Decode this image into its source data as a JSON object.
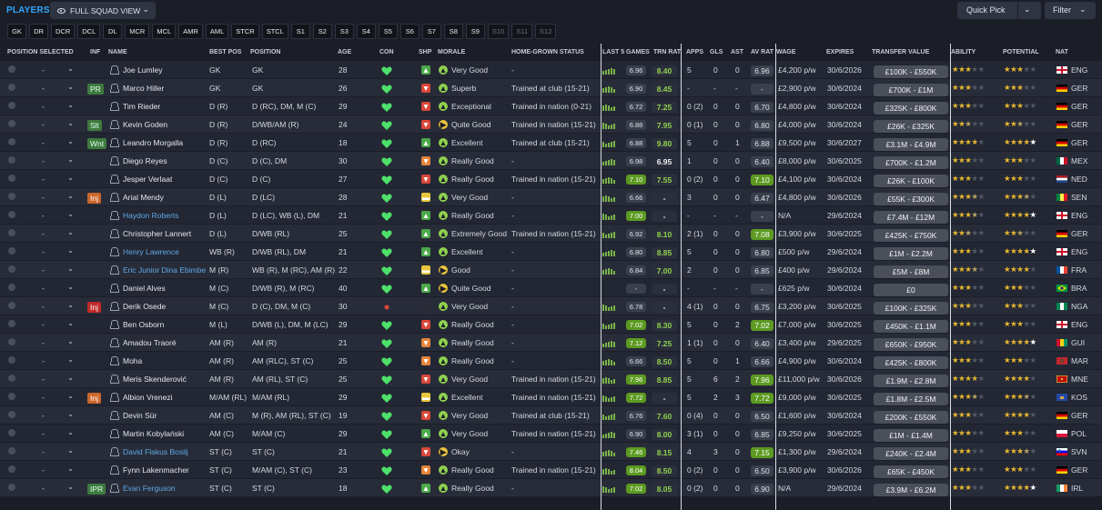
{
  "header": {
    "title": "PLAYERS",
    "view_label": "FULL SQUAD VIEW",
    "quick_pick": "Quick Pick",
    "filter": "Filter"
  },
  "chips": [
    "GK",
    "DR",
    "DCR",
    "DCL",
    "DL",
    "MCR",
    "MCL",
    "AMR",
    "AML",
    "STCR",
    "STCL",
    "S1",
    "S2",
    "S3",
    "S4",
    "S5",
    "S6",
    "S7",
    "S8",
    "S9",
    "S10",
    "S11",
    "S12"
  ],
  "dim_chips": [
    "S10",
    "S11",
    "S12"
  ],
  "columns": {
    "position_selected": "POSITION SELECTED",
    "inf": "INF",
    "name": "NAME",
    "best_pos": "BEST POS",
    "position": "POSITION",
    "age": "AGE",
    "con": "CON",
    "shp": "SHP",
    "morale": "MORALE",
    "home_grown": "HOME-GROWN STATUS",
    "last5": "LAST 5 GAMES",
    "trn": "TRN RAT",
    "apps": "APPS",
    "gls": "GLS",
    "ast": "AST",
    "avrat": "AV RAT",
    "wage": "WAGE",
    "expires": "EXPIRES",
    "tv": "TRANSFER VALUE",
    "ability": "ABILITY",
    "potential": "POTENTIAL",
    "nat": "NAT"
  },
  "players": [
    {
      "sel": "-",
      "inf": "",
      "name": "Joe Lumley",
      "link": false,
      "best": "GK",
      "pos": "GK",
      "age": "28",
      "shp": "g",
      "mor": "Very Good",
      "mc": "g",
      "hg": "-",
      "l5": "6.96",
      "l5hi": false,
      "trn": "8.40",
      "trnw": false,
      "apps": "5",
      "gls": "0",
      "ast": "0",
      "av": "6.96",
      "avhi": false,
      "wage": "£4,200 p/w",
      "exp": "30/6/2026",
      "tv": "£100K - £550K",
      "ab": 3,
      "abh": 0,
      "po": 3,
      "poh": 0,
      "pw": 0,
      "flag": "eng",
      "nat": "ENG"
    },
    {
      "sel": "-",
      "inf": "PR",
      "name": "Marco Hiller",
      "link": false,
      "best": "GK",
      "pos": "GK",
      "age": "26",
      "shp": "r",
      "mor": "Superb",
      "mc": "g",
      "hg": "Trained at club (15-21)",
      "l5": "6.90",
      "l5hi": false,
      "trn": "8.45",
      "trnw": false,
      "apps": "-",
      "gls": "-",
      "ast": "-",
      "av": "-",
      "avhi": false,
      "wage": "£2,900 p/w",
      "exp": "30/6/2024",
      "tv": "£700K - £1M",
      "ab": 3,
      "abh": 0,
      "po": 3,
      "poh": 0,
      "pw": 0,
      "flag": "ger",
      "nat": "GER"
    },
    {
      "sel": "-",
      "inf": "",
      "name": "Tim Rieder",
      "link": false,
      "best": "D (R)",
      "pos": "D (RC), DM, M (C)",
      "age": "29",
      "shp": "r",
      "mor": "Exceptional",
      "mc": "g",
      "hg": "Trained in nation (0-21)",
      "l5": "6.72",
      "l5hi": false,
      "trn": "7.25",
      "trnw": false,
      "apps": "0 (2)",
      "gls": "0",
      "ast": "0",
      "av": "6.70",
      "avhi": false,
      "wage": "£4,800 p/w",
      "exp": "30/6/2024",
      "tv": "£325K - £800K",
      "ab": 3,
      "abh": 0,
      "po": 3,
      "poh": 0,
      "pw": 0,
      "flag": "ger",
      "nat": "GER"
    },
    {
      "sel": "-",
      "inf": "Slt",
      "name": "Kevin Goden",
      "link": false,
      "best": "D (R)",
      "pos": "D/WB/AM (R)",
      "age": "24",
      "shp": "r",
      "mor": "Quite Good",
      "mc": "y",
      "hg": "Trained in nation (15-21)",
      "l5": "6.88",
      "l5hi": false,
      "trn": "7.95",
      "trnw": false,
      "apps": "0 (1)",
      "gls": "0",
      "ast": "0",
      "av": "6.80",
      "avhi": false,
      "wage": "£4,000 p/w",
      "exp": "30/6/2024",
      "tv": "£26K - £325K",
      "ab": 2,
      "abh": 1,
      "po": 2,
      "poh": 1,
      "pw": 0,
      "flag": "ger",
      "nat": "GER"
    },
    {
      "sel": "-",
      "inf": "Wnt",
      "name": "Leandro Morgalla",
      "link": false,
      "best": "D (R)",
      "pos": "D (RC)",
      "age": "18",
      "shp": "g",
      "mor": "Excellent",
      "mc": "g",
      "hg": "Trained at club (15-21)",
      "l5": "6.88",
      "l5hi": false,
      "trn": "9.80",
      "trnw": false,
      "apps": "5",
      "gls": "0",
      "ast": "1",
      "av": "6.88",
      "avhi": false,
      "wage": "£9,500 p/w",
      "exp": "30/6/2027",
      "tv": "£3.1M - £4.9M",
      "ab": 4,
      "abh": 0,
      "po": 4,
      "poh": 0,
      "pw": 1,
      "flag": "ger",
      "nat": "GER"
    },
    {
      "sel": "-",
      "inf": "",
      "name": "Diego Reyes",
      "link": false,
      "best": "D (C)",
      "pos": "D (C), DM",
      "age": "30",
      "shp": "o",
      "mor": "Really Good",
      "mc": "g",
      "hg": "-",
      "l5": "6.98",
      "l5hi": false,
      "trn": "6.95",
      "trnw": true,
      "apps": "1",
      "gls": "0",
      "ast": "0",
      "av": "6.40",
      "avhi": false,
      "wage": "£8,000 p/w",
      "exp": "30/6/2025",
      "tv": "£700K - £1.2M",
      "ab": 3,
      "abh": 0,
      "po": 3,
      "poh": 0,
      "pw": 0,
      "flag": "mex",
      "nat": "MEX"
    },
    {
      "sel": "-",
      "inf": "",
      "name": "Jesper Verlaat",
      "link": false,
      "best": "D (C)",
      "pos": "D (C)",
      "age": "27",
      "shp": "r",
      "mor": "Really Good",
      "mc": "g",
      "hg": "Trained in nation (15-21)",
      "l5": "7.10",
      "l5hi": true,
      "trn": "7.55",
      "trnw": false,
      "apps": "0 (2)",
      "gls": "0",
      "ast": "0",
      "av": "7.10",
      "avhi": true,
      "wage": "£4,100 p/w",
      "exp": "30/6/2024",
      "tv": "£26K - £100K",
      "ab": 3,
      "abh": 0,
      "po": 3,
      "poh": 0,
      "pw": 0,
      "flag": "ned",
      "nat": "NED"
    },
    {
      "sel": "-",
      "inf": "Inj",
      "name": "Arial Mendy",
      "link": false,
      "best": "D (L)",
      "pos": "D (LC)",
      "age": "28",
      "shp": "y",
      "mor": "Very Good",
      "mc": "g",
      "hg": "-",
      "l5": "6.66",
      "l5hi": false,
      "trn": "-",
      "trnw": true,
      "apps": "3",
      "gls": "0",
      "ast": "0",
      "av": "6.47",
      "avhi": false,
      "wage": "£4,800 p/w",
      "exp": "30/6/2026",
      "tv": "£55K - £300K",
      "ab": 3,
      "abh": 1,
      "po": 3,
      "poh": 1,
      "pw": 0,
      "flag": "sen",
      "nat": "SEN"
    },
    {
      "sel": "-",
      "inf": "",
      "name": "Haydon Roberts",
      "link": true,
      "best": "D (L)",
      "pos": "D (LC), WB (L), DM",
      "age": "21",
      "shp": "g",
      "mor": "Really Good",
      "mc": "g",
      "hg": "-",
      "l5": "7.00",
      "l5hi": true,
      "trn": "-",
      "trnw": true,
      "apps": "-",
      "gls": "-",
      "ast": "-",
      "av": "-",
      "avhi": false,
      "wage": "N/A",
      "exp": "29/6/2024",
      "tv": "£7.4M - £12M",
      "ab": 3,
      "abh": 1,
      "po": 4,
      "poh": 0,
      "pw": 1,
      "flag": "eng",
      "nat": "ENG"
    },
    {
      "sel": "-",
      "inf": "",
      "name": "Christopher Lannert",
      "link": false,
      "best": "D (L)",
      "pos": "D/WB (RL)",
      "age": "25",
      "shp": "g",
      "mor": "Extremely Good",
      "mc": "g",
      "hg": "Trained in nation (15-21)",
      "l5": "6.92",
      "l5hi": false,
      "trn": "8.10",
      "trnw": false,
      "apps": "2 (1)",
      "gls": "0",
      "ast": "0",
      "av": "7.08",
      "avhi": true,
      "wage": "£3,900 p/w",
      "exp": "30/6/2025",
      "tv": "£425K - £750K",
      "ab": 2,
      "abh": 1,
      "po": 2,
      "poh": 1,
      "pw": 0,
      "flag": "ger",
      "nat": "GER"
    },
    {
      "sel": "-",
      "inf": "",
      "name": "Henry Lawrence",
      "link": true,
      "best": "WB (R)",
      "pos": "D/WB (RL), DM",
      "age": "21",
      "shp": "g",
      "mor": "Excellent",
      "mc": "g",
      "hg": "-",
      "l5": "6.80",
      "l5hi": false,
      "trn": "8.85",
      "trnw": false,
      "apps": "5",
      "gls": "0",
      "ast": "0",
      "av": "6.80",
      "avhi": false,
      "wage": "£500 p/w",
      "exp": "29/6/2024",
      "tv": "£1M - £2.2M",
      "ab": 3,
      "abh": 0,
      "po": 4,
      "poh": 0,
      "pw": 1,
      "flag": "eng",
      "nat": "ENG"
    },
    {
      "sel": "-",
      "inf": "",
      "name": "Eric Junior Dina Ebimbe",
      "link": true,
      "best": "M (R)",
      "pos": "WB (R), M (RC), AM (R)",
      "age": "22",
      "shp": "y",
      "mor": "Good",
      "mc": "y",
      "hg": "-",
      "l5": "6.84",
      "l5hi": false,
      "trn": "7.00",
      "trnw": false,
      "apps": "2",
      "gls": "0",
      "ast": "0",
      "av": "6.85",
      "avhi": false,
      "wage": "£400 p/w",
      "exp": "29/6/2024",
      "tv": "£5M - £8M",
      "ab": 3,
      "abh": 1,
      "po": 4,
      "poh": 0,
      "pw": 0,
      "flag": "fra",
      "nat": "FRA"
    },
    {
      "sel": "-",
      "inf": "",
      "name": "Daniel Alves",
      "link": false,
      "best": "M (C)",
      "pos": "D/WB (R), M (RC)",
      "age": "40",
      "shp": "g",
      "mor": "Quite Good",
      "mc": "y",
      "hg": "-",
      "l5": "-",
      "l5hi": false,
      "trn": "-",
      "trnw": true,
      "apps": "-",
      "gls": "-",
      "ast": "-",
      "av": "-",
      "avhi": false,
      "wage": "£625 p/w",
      "exp": "30/6/2024",
      "tv": "£0",
      "ab": 3,
      "abh": 0,
      "po": 3,
      "poh": 0,
      "pw": 0,
      "flag": "bra",
      "nat": "BRA"
    },
    {
      "sel": "-",
      "inf": "Inj",
      "name": "Derik Osede",
      "link": false,
      "best": "M (C)",
      "pos": "D (C), DM, M (C)",
      "age": "30",
      "shp": "x",
      "mor": "Very Good",
      "mc": "g",
      "hg": "-",
      "l5": "6.78",
      "l5hi": false,
      "trn": "-",
      "trnw": true,
      "apps": "4 (1)",
      "gls": "0",
      "ast": "0",
      "av": "6.75",
      "avhi": false,
      "wage": "£3,200 p/w",
      "exp": "30/6/2025",
      "tv": "£100K - £325K",
      "ab": 3,
      "abh": 0,
      "po": 3,
      "poh": 0,
      "pw": 0,
      "flag": "nga",
      "nat": "NGA"
    },
    {
      "sel": "-",
      "inf": "",
      "name": "Ben Osborn",
      "link": false,
      "best": "M (L)",
      "pos": "D/WB (L), DM, M (LC)",
      "age": "29",
      "shp": "r",
      "mor": "Really Good",
      "mc": "g",
      "hg": "-",
      "l5": "7.02",
      "l5hi": true,
      "trn": "8.30",
      "trnw": false,
      "apps": "5",
      "gls": "0",
      "ast": "2",
      "av": "7.02",
      "avhi": true,
      "wage": "£7,000 p/w",
      "exp": "30/6/2025",
      "tv": "£450K - £1.1M",
      "ab": 3,
      "abh": 0,
      "po": 3,
      "poh": 0,
      "pw": 0,
      "flag": "eng",
      "nat": "ENG"
    },
    {
      "sel": "-",
      "inf": "",
      "name": "Amadou Traoré",
      "link": false,
      "best": "AM (R)",
      "pos": "AM (R)",
      "age": "21",
      "shp": "o",
      "mor": "Really Good",
      "mc": "g",
      "hg": "-",
      "l5": "7.12",
      "l5hi": true,
      "trn": "7.25",
      "trnw": false,
      "apps": "1 (1)",
      "gls": "0",
      "ast": "0",
      "av": "6.40",
      "avhi": false,
      "wage": "£3,400 p/w",
      "exp": "29/6/2025",
      "tv": "£650K - £950K",
      "ab": 3,
      "abh": 0,
      "po": 4,
      "poh": 0,
      "pw": 1,
      "flag": "gui",
      "nat": "GUI"
    },
    {
      "sel": "-",
      "inf": "",
      "name": "Moha",
      "link": false,
      "best": "AM (R)",
      "pos": "AM (RLC), ST (C)",
      "age": "25",
      "shp": "o",
      "mor": "Really Good",
      "mc": "g",
      "hg": "-",
      "l5": "6.66",
      "l5hi": false,
      "trn": "8.50",
      "trnw": false,
      "apps": "5",
      "gls": "0",
      "ast": "1",
      "av": "6.66",
      "avhi": false,
      "wage": "£4,900 p/w",
      "exp": "30/6/2024",
      "tv": "£425K - £800K",
      "ab": 3,
      "abh": 0,
      "po": 3,
      "poh": 0,
      "pw": 0,
      "flag": "mar",
      "nat": "MAR"
    },
    {
      "sel": "-",
      "inf": "",
      "name": "Meris Skenderović",
      "link": false,
      "best": "AM (R)",
      "pos": "AM (RL), ST (C)",
      "age": "25",
      "shp": "r",
      "mor": "Very Good",
      "mc": "g",
      "hg": "Trained in nation (15-21)",
      "l5": "7.96",
      "l5hi": true,
      "trn": "8.85",
      "trnw": false,
      "apps": "5",
      "gls": "6",
      "ast": "2",
      "av": "7.96",
      "avhi": true,
      "wage": "£11,000 p/w",
      "exp": "30/6/2026",
      "tv": "£1.9M - £2.8M",
      "ab": 4,
      "abh": 0,
      "po": 4,
      "poh": 0,
      "pw": 0,
      "flag": "mne",
      "nat": "MNE"
    },
    {
      "sel": "-",
      "inf": "Inj",
      "name": "Albion Vrenezi",
      "link": false,
      "best": "M/AM (RL)",
      "pos": "M/AM (RL)",
      "age": "29",
      "shp": "y",
      "mor": "Excellent",
      "mc": "g",
      "hg": "Trained in nation (15-21)",
      "l5": "7.72",
      "l5hi": true,
      "trn": "-",
      "trnw": true,
      "apps": "5",
      "gls": "2",
      "ast": "3",
      "av": "7.72",
      "avhi": true,
      "wage": "£9,000 p/w",
      "exp": "30/6/2025",
      "tv": "£1.8M - £2.5M",
      "ab": 3,
      "abh": 1,
      "po": 3,
      "poh": 1,
      "pw": 0,
      "flag": "kos",
      "nat": "KOS"
    },
    {
      "sel": "-",
      "inf": "",
      "name": "Devin Sür",
      "link": false,
      "best": "AM (C)",
      "pos": "M (R), AM (RL), ST (C)",
      "age": "19",
      "shp": "r",
      "mor": "Very Good",
      "mc": "g",
      "hg": "Trained at club (15-21)",
      "l5": "6.76",
      "l5hi": false,
      "trn": "7.60",
      "trnw": false,
      "apps": "0 (4)",
      "gls": "0",
      "ast": "0",
      "av": "6.50",
      "avhi": false,
      "wage": "£1,600 p/w",
      "exp": "30/6/2024",
      "tv": "£200K - £550K",
      "ab": 3,
      "abh": 0,
      "po": 4,
      "poh": 0,
      "pw": 0,
      "flag": "ger",
      "nat": "GER"
    },
    {
      "sel": "-",
      "inf": "",
      "name": "Martin Kobylański",
      "link": false,
      "best": "AM (C)",
      "pos": "M/AM (C)",
      "age": "29",
      "shp": "g",
      "mor": "Very Good",
      "mc": "g",
      "hg": "Trained in nation (15-21)",
      "l5": "6.90",
      "l5hi": false,
      "trn": "8.00",
      "trnw": false,
      "apps": "3 (1)",
      "gls": "0",
      "ast": "0",
      "av": "6.85",
      "avhi": false,
      "wage": "£9,250 p/w",
      "exp": "30/6/2025",
      "tv": "£1M - £1.4M",
      "ab": 3,
      "abh": 0,
      "po": 3,
      "poh": 0,
      "pw": 0,
      "flag": "pol",
      "nat": "POL"
    },
    {
      "sel": "-",
      "inf": "",
      "name": "David Flakus Bosilj",
      "link": true,
      "best": "ST (C)",
      "pos": "ST (C)",
      "age": "21",
      "shp": "r",
      "mor": "Okay",
      "mc": "y",
      "hg": "-",
      "l5": "7.46",
      "l5hi": true,
      "trn": "8.15",
      "trnw": false,
      "apps": "4",
      "gls": "3",
      "ast": "0",
      "av": "7.15",
      "avhi": true,
      "wage": "£1,300 p/w",
      "exp": "29/6/2024",
      "tv": "£240K - £2.4M",
      "ab": 3,
      "abh": 0,
      "po": 3,
      "poh": 1,
      "pw": 0,
      "flag": "svn",
      "nat": "SVN"
    },
    {
      "sel": "-",
      "inf": "",
      "name": "Fynn Lakenmacher",
      "link": false,
      "best": "ST (C)",
      "pos": "M/AM (C), ST (C)",
      "age": "23",
      "shp": "o",
      "mor": "Really Good",
      "mc": "g",
      "hg": "Trained in nation (15-21)",
      "l5": "8.04",
      "l5hi": true,
      "trn": "8.50",
      "trnw": false,
      "apps": "0 (2)",
      "gls": "0",
      "ast": "0",
      "av": "6.50",
      "avhi": false,
      "wage": "£3,900 p/w",
      "exp": "30/6/2026",
      "tv": "£65K - £450K",
      "ab": 3,
      "abh": 0,
      "po": 3,
      "poh": 0,
      "pw": 0,
      "flag": "ger",
      "nat": "GER"
    },
    {
      "sel": "-",
      "inf": "IPR",
      "name": "Evan Ferguson",
      "link": true,
      "best": "ST (C)",
      "pos": "ST (C)",
      "age": "18",
      "shp": "g",
      "mor": "Really Good",
      "mc": "g",
      "hg": "-",
      "l5": "7.02",
      "l5hi": true,
      "trn": "8.05",
      "trnw": false,
      "apps": "0 (2)",
      "gls": "0",
      "ast": "0",
      "av": "6.90",
      "avhi": false,
      "wage": "N/A",
      "exp": "29/6/2024",
      "tv": "£3.9M - £6.2M",
      "ab": 3,
      "abh": 0,
      "po": 4,
      "poh": 0,
      "pw": 1,
      "flag": "irl",
      "nat": "IRL"
    }
  ],
  "colors": {
    "accent": "#2ea7ff",
    "good": "#5c9a21",
    "heart": "#4de06a",
    "star": "#e9b92f"
  }
}
